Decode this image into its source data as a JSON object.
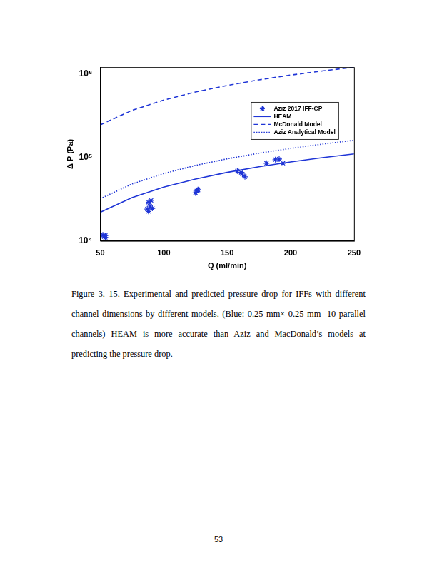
{
  "chart_data": {
    "type": "scatter",
    "xlabel": "Q (ml/min)",
    "ylabel": "Δ P (Pa)",
    "xlim": [
      50,
      250
    ],
    "xticks": [
      50,
      100,
      150,
      200,
      250
    ],
    "ylim": [
      10000,
      1200000
    ],
    "yticks": [
      {
        "value": 10000,
        "label": "10⁴"
      },
      {
        "value": 100000,
        "label": "10⁵"
      },
      {
        "value": 1000000,
        "label": "10⁶"
      }
    ],
    "log": "y",
    "grid": false,
    "legend": "right",
    "series": [
      {
        "name": "Aziz 2017 IFF-CP",
        "type": "scatter",
        "marker": "star",
        "color": "#1f35d6",
        "x": [
          52,
          54,
          53,
          54,
          88,
          90,
          89,
          91,
          88,
          87,
          125,
          126,
          127,
          127,
          158,
          161,
          162,
          164,
          181,
          188,
          191,
          194
        ],
        "values": [
          11800,
          11600,
          11200,
          11000,
          29000,
          30500,
          26000,
          24500,
          22500,
          24000,
          37500,
          39500,
          41000,
          40500,
          68500,
          66000,
          63000,
          58500,
          85000,
          93800,
          95400,
          85000
        ]
      },
      {
        "name": "HEAM",
        "type": "line",
        "line_style": "solid",
        "color": "#1f35d6",
        "x": [
          50,
          75,
          100,
          125,
          150,
          175,
          200,
          225,
          250
        ],
        "values": [
          22000,
          33000,
          44000,
          55000,
          66000,
          77000,
          88000,
          99000,
          110000
        ]
      },
      {
        "name": "McDonald Model",
        "type": "line",
        "line_style": "dashed",
        "color": "#1f35d6",
        "x": [
          50,
          75,
          100,
          125,
          150,
          175,
          200,
          225,
          250
        ],
        "values": [
          245000,
          365000,
          485000,
          605000,
          725000,
          845000,
          965000,
          1080000,
          1200000
        ]
      },
      {
        "name": "Aziz Analytical Model",
        "type": "line",
        "line_style": "dotted",
        "color": "#1f35d6",
        "x": [
          50,
          75,
          100,
          125,
          150,
          175,
          200,
          225,
          250
        ],
        "values": [
          32000,
          48000,
          64000,
          80000,
          96000,
          112000,
          128000,
          144000,
          160000
        ]
      }
    ]
  },
  "caption": "Figure 3. 15. Experimental and predicted pressure drop for IFFs with different channel dimensions by different models. (Blue: 0.25 mm× 0.25 mm- 10 parallel channels) HEAM is more accurate than Aziz and MacDonald’s models at predicting the pressure drop.",
  "page_number": 53
}
